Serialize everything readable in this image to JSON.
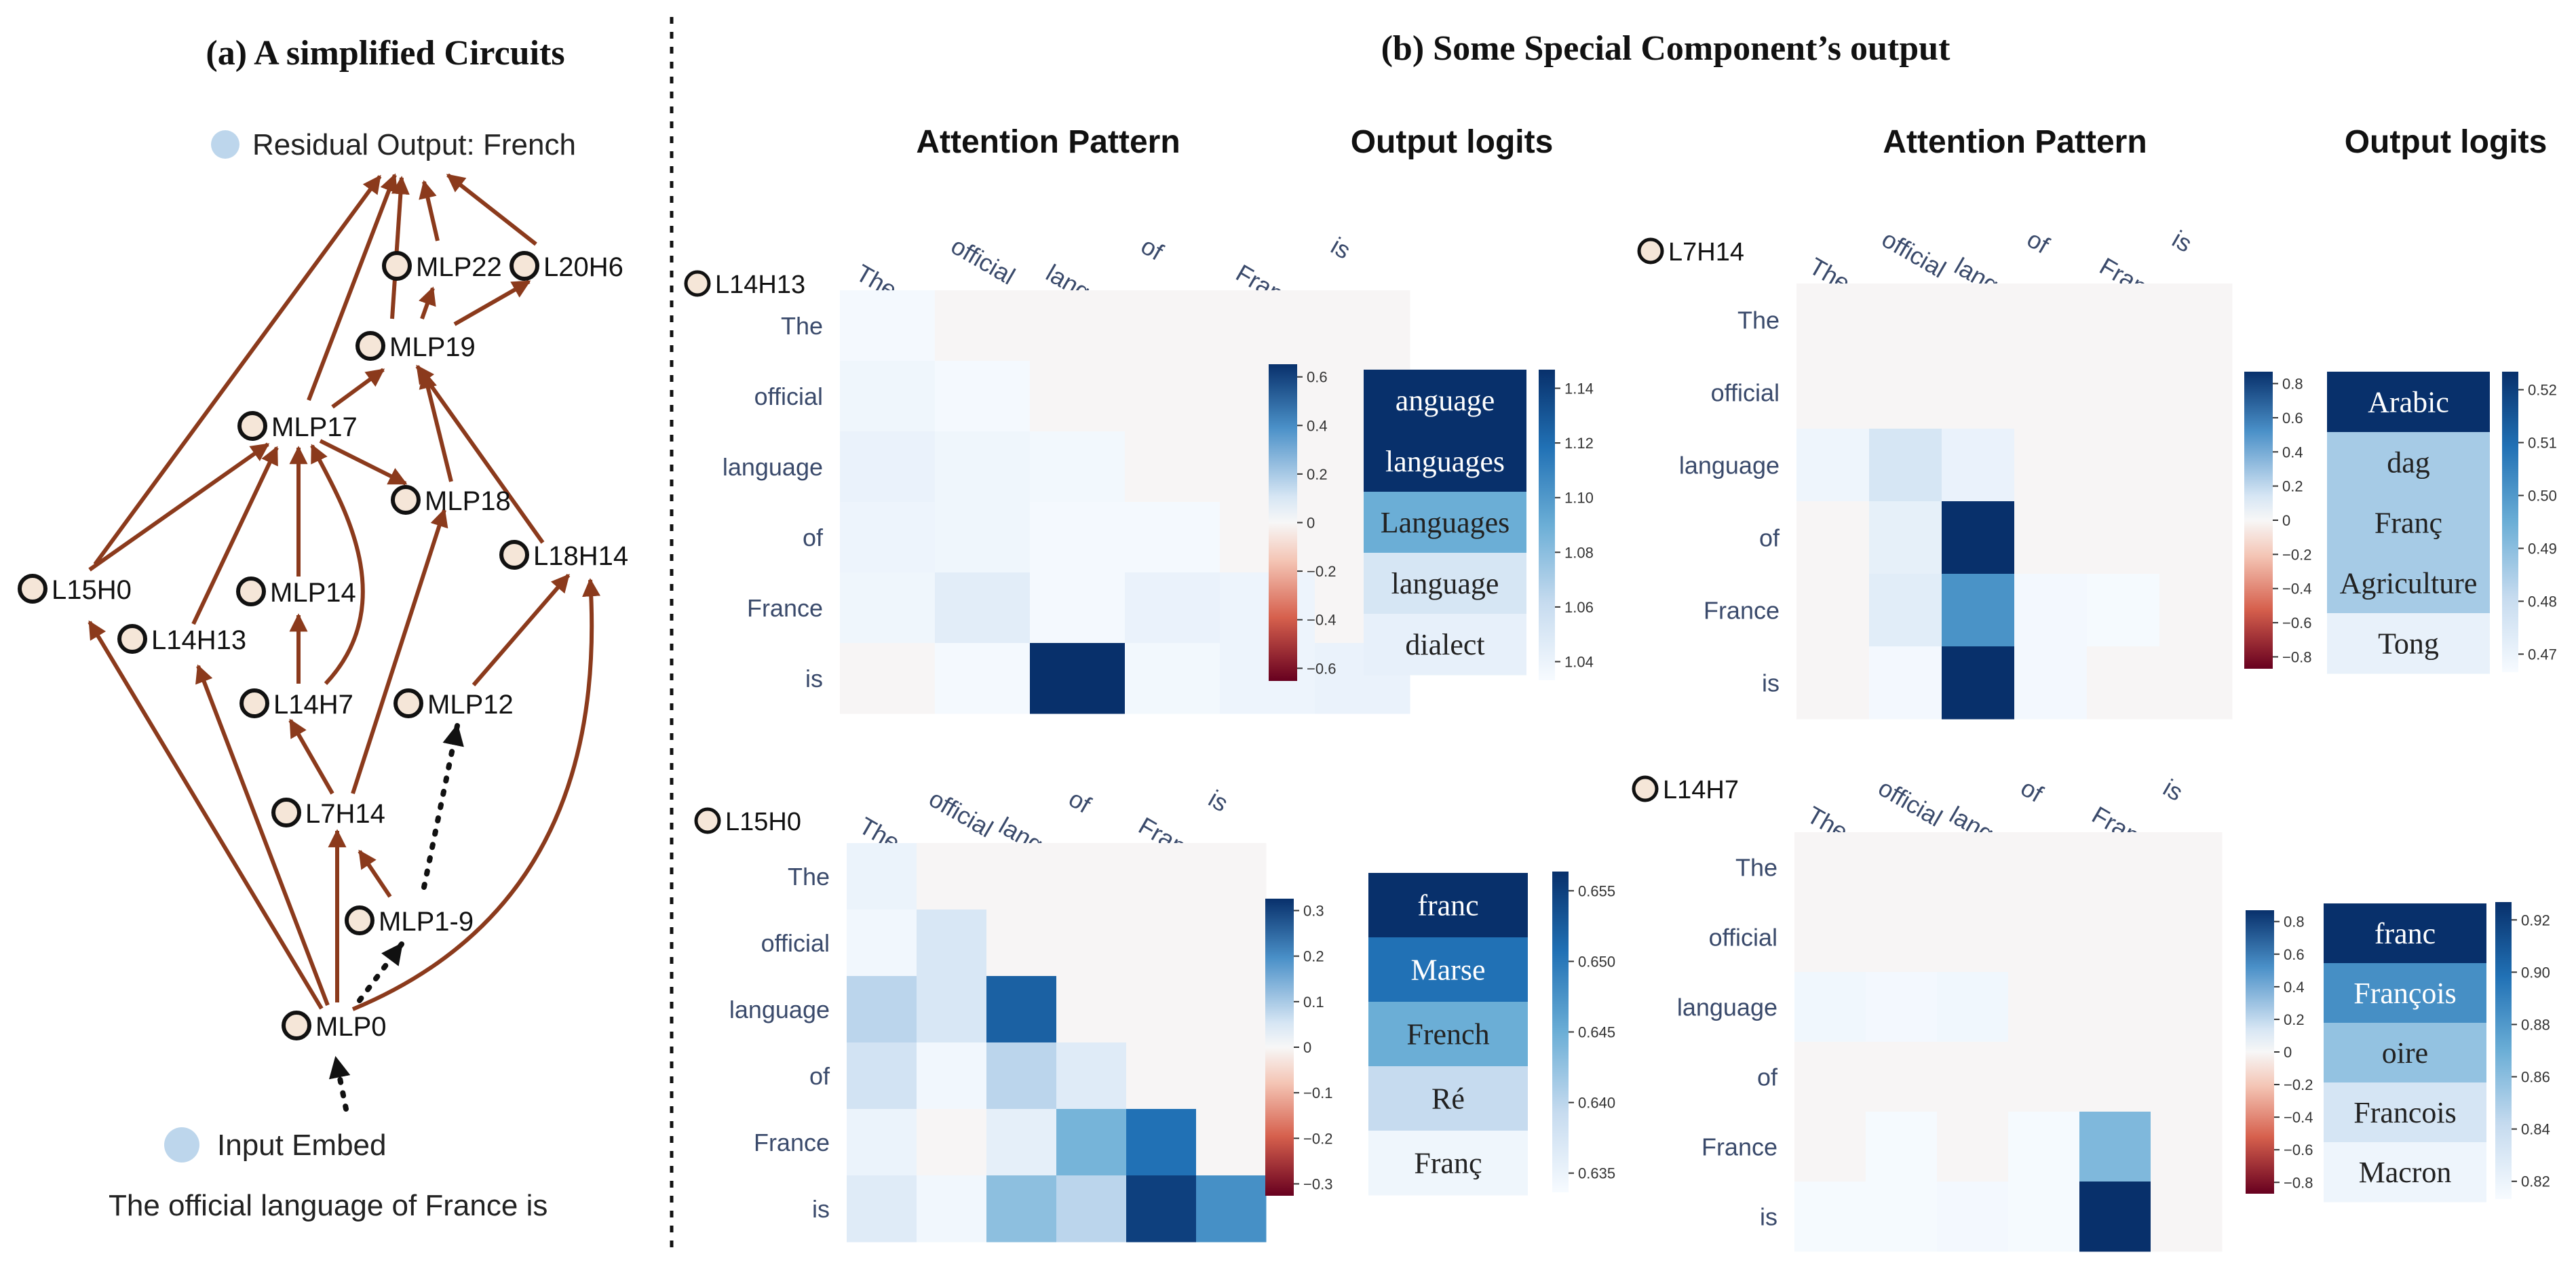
{
  "left": {
    "title": "(a)  A simplified Circuits",
    "legend_output": "Residual Output: French",
    "legend_input": "Input Embed",
    "sentence": "The official language of France is",
    "nodes": [
      {
        "id": "MLP0",
        "label": "MLP0"
      },
      {
        "id": "MLP19b",
        "label": "MLP1-9"
      },
      {
        "id": "L7H14",
        "label": "L7H14"
      },
      {
        "id": "L14H7",
        "label": "L14H7"
      },
      {
        "id": "MLP12",
        "label": "MLP12"
      },
      {
        "id": "L14H13",
        "label": "L14H13"
      },
      {
        "id": "MLP14",
        "label": "MLP14"
      },
      {
        "id": "L15H0",
        "label": "L15H0"
      },
      {
        "id": "L18H14",
        "label": "L18H14"
      },
      {
        "id": "MLP18",
        "label": "MLP18"
      },
      {
        "id": "MLP17",
        "label": "MLP17"
      },
      {
        "id": "MLP19",
        "label": "MLP19"
      },
      {
        "id": "MLP22",
        "label": "MLP22"
      },
      {
        "id": "L20H6",
        "label": "L20H6"
      }
    ]
  },
  "right": {
    "title": "(b)  Some Special Component’s output",
    "col_attention": "Attention Pattern",
    "col_logits": "Output logits"
  },
  "tokens": [
    "The",
    "official",
    "language",
    "of",
    "France",
    "is"
  ],
  "panels": [
    {
      "id": "L14H13",
      "label": "L14H13",
      "attn": [
        [
          0.01,
          0,
          0,
          0,
          0,
          0
        ],
        [
          0.03,
          0.01,
          0,
          0,
          0,
          0
        ],
        [
          0.05,
          0.03,
          0.02,
          0,
          0,
          0
        ],
        [
          0.04,
          0.03,
          0.01,
          0.01,
          0,
          0
        ],
        [
          0.03,
          0.08,
          0.01,
          0.05,
          0.04,
          0
        ],
        [
          -0.01,
          0.01,
          0.75,
          0.02,
          0.04,
          0.05
        ]
      ],
      "attn_ticks": [
        "0.6",
        "0.4",
        "0.2",
        "0",
        "−0.2",
        "−0.4",
        "−0.6"
      ],
      "logits": [
        "anguage",
        "languages",
        "Languages",
        "language",
        "dialect"
      ],
      "logit_values": [
        1.15,
        1.15,
        1.09,
        1.05,
        1.04
      ],
      "logit_ticks": [
        "1.14",
        "1.12",
        "1.10",
        "1.08",
        "1.06",
        "1.04"
      ]
    },
    {
      "id": "L7H14",
      "label": "L7H14",
      "attn": [
        [
          0,
          0,
          0,
          0,
          0,
          0
        ],
        [
          0,
          0,
          0,
          0,
          0,
          0
        ],
        [
          0.04,
          0.15,
          0.06,
          0,
          0,
          0
        ],
        [
          0,
          0.08,
          0.9,
          0,
          0,
          0
        ],
        [
          0,
          0.1,
          0.55,
          0.02,
          0.01,
          0
        ],
        [
          0,
          0.02,
          0.92,
          0.02,
          0,
          0
        ]
      ],
      "attn_ticks": [
        "0.8",
        "0.6",
        "0.4",
        "0.2",
        "0",
        "−0.2",
        "−0.4",
        "−0.6",
        "−0.8"
      ],
      "logits": [
        "Arabic",
        "dag",
        "Franç",
        "Agriculture",
        "Tong"
      ],
      "logit_values": [
        0.53,
        0.487,
        0.487,
        0.487,
        0.47
      ],
      "logit_ticks": [
        "0.52",
        "0.51",
        "0.50",
        "0.49",
        "0.48",
        "0.47"
      ]
    },
    {
      "id": "L15H0",
      "label": "L15H0",
      "attn": [
        [
          0.02,
          0,
          0,
          0,
          0,
          0
        ],
        [
          0.01,
          0.05,
          0,
          0,
          0,
          0
        ],
        [
          0.09,
          0.05,
          0.26,
          0,
          0,
          0
        ],
        [
          0.06,
          0.01,
          0.09,
          0.04,
          0,
          0
        ],
        [
          0.02,
          0,
          0.03,
          0.15,
          0.24,
          0
        ],
        [
          0.04,
          0.01,
          0.13,
          0.09,
          0.3,
          0.2
        ]
      ],
      "attn_ticks": [
        "0.3",
        "0.2",
        "0.1",
        "0",
        "−0.1",
        "−0.2",
        "−0.3"
      ],
      "logits": [
        "franc",
        "Marse",
        "French",
        "Ré",
        "Franç"
      ],
      "logit_values": [
        0.657,
        0.651,
        0.645,
        0.639,
        0.634
      ],
      "logit_ticks": [
        "0.655",
        "0.650",
        "0.645",
        "0.640",
        "0.635"
      ]
    },
    {
      "id": "L14H7",
      "label": "L14H7",
      "attn": [
        [
          0,
          0,
          0,
          0,
          0,
          0
        ],
        [
          0,
          0,
          0,
          0,
          0,
          0
        ],
        [
          0.03,
          0.02,
          0.03,
          0,
          0,
          0
        ],
        [
          0,
          0,
          0,
          0,
          0,
          0
        ],
        [
          0,
          0.01,
          0,
          0.01,
          0.4,
          0
        ],
        [
          0.01,
          0.01,
          0.02,
          0.01,
          0.95,
          0
        ]
      ],
      "attn_ticks": [
        "0.8",
        "0.6",
        "0.4",
        "0.2",
        "0",
        "−0.2",
        "−0.4",
        "−0.6",
        "−0.8"
      ],
      "logits": [
        "franc",
        "François",
        "oire",
        "Francois",
        "Macron"
      ],
      "logit_values": [
        0.93,
        0.887,
        0.86,
        0.835,
        0.82
      ],
      "logit_ticks": [
        "0.92",
        "0.90",
        "0.88",
        "0.86",
        "0.84",
        "0.82"
      ]
    }
  ],
  "colors": {
    "edge": "#8B3A1C",
    "node_fill": "#F5E6D8",
    "legend_dot": "#BDD6EC",
    "text": "#222222",
    "axis_text": "#3a4a6b"
  }
}
